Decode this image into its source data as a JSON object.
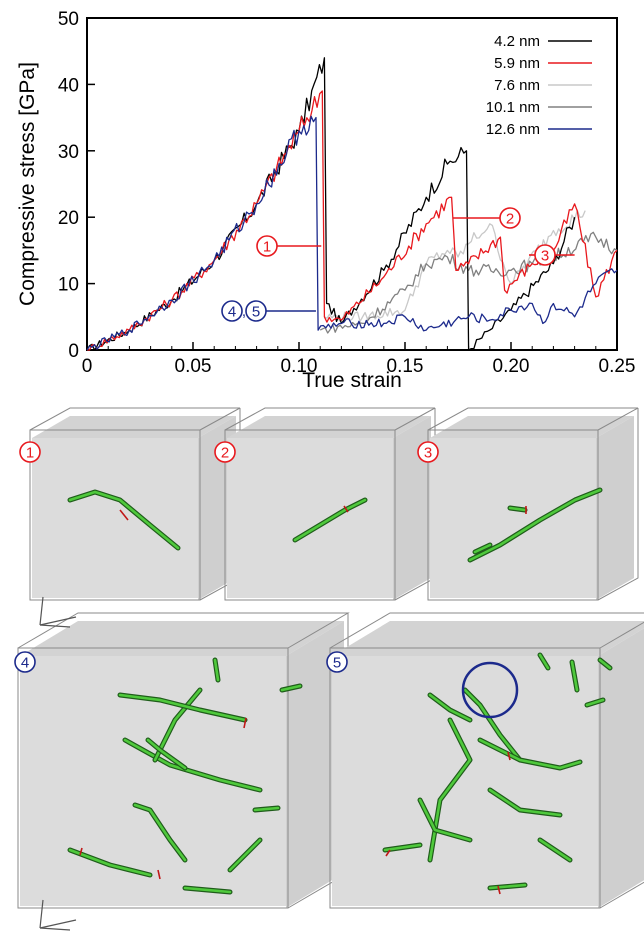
{
  "chart_data": {
    "type": "line",
    "xlabel": "True strain",
    "ylabel": "Compressive stress [GPa]",
    "xlim": [
      0,
      0.25
    ],
    "ylim": [
      0,
      50
    ],
    "xticks": [
      "0",
      "0.05",
      "0.10",
      "0.15",
      "0.20",
      "0.25"
    ],
    "yticks": [
      "0",
      "10",
      "20",
      "30",
      "40",
      "50"
    ],
    "legend_position": "top-right",
    "series": [
      {
        "name": "4.2 nm",
        "color": "#000000",
        "x": [
          0,
          0.02,
          0.04,
          0.06,
          0.08,
          0.1,
          0.112,
          0.113,
          0.12,
          0.14,
          0.16,
          0.17,
          0.179,
          0.18,
          0.19,
          0.2,
          0.22,
          0.23
        ],
        "y": [
          0,
          3,
          7.5,
          13.5,
          22,
          33,
          44,
          7,
          4,
          12,
          23,
          28,
          30,
          0,
          3,
          6,
          13,
          20
        ]
      },
      {
        "name": "5.9 nm",
        "color": "#e8191e",
        "x": [
          0,
          0.02,
          0.04,
          0.06,
          0.08,
          0.1,
          0.111,
          0.112,
          0.12,
          0.14,
          0.16,
          0.172,
          0.174,
          0.18,
          0.195,
          0.197,
          0.21,
          0.22,
          0.23,
          0.24,
          0.25
        ],
        "y": [
          0,
          3,
          7.5,
          13.5,
          22,
          33,
          39,
          5,
          4.5,
          11,
          19,
          23,
          12,
          13,
          17,
          9,
          13,
          15,
          22,
          8,
          15
        ]
      },
      {
        "name": "7.6 nm",
        "color": "#c8c8c8",
        "x": [
          0.112,
          0.13,
          0.15,
          0.16,
          0.17,
          0.175,
          0.18,
          0.19,
          0.2,
          0.22,
          0.235
        ],
        "y": [
          5,
          5,
          6,
          13,
          15,
          14,
          16,
          19,
          10,
          18,
          21
        ]
      },
      {
        "name": "10.1 nm",
        "color": "#808080",
        "x": [
          0.11,
          0.13,
          0.15,
          0.16,
          0.17,
          0.18,
          0.2,
          0.21,
          0.22,
          0.24,
          0.25
        ],
        "y": [
          3,
          4,
          9,
          13,
          14,
          12,
          12,
          13,
          14,
          17,
          15
        ]
      },
      {
        "name": "12.6 nm",
        "color": "#1c2a8c",
        "x": [
          0,
          0.02,
          0.04,
          0.06,
          0.08,
          0.1,
          0.108,
          0.109,
          0.12,
          0.14,
          0.15,
          0.16,
          0.18,
          0.19,
          0.2,
          0.21,
          0.215,
          0.22,
          0.23,
          0.24,
          0.25
        ],
        "y": [
          0,
          3,
          7.5,
          13.5,
          22,
          33,
          35,
          3,
          4,
          4,
          5,
          3,
          5,
          4.5,
          6,
          7,
          4,
          7,
          5,
          10,
          12
        ]
      }
    ],
    "annotations": [
      {
        "label": "1",
        "color": "#e8191e"
      },
      {
        "label": "2",
        "color": "#e8191e"
      },
      {
        "label": "3",
        "color": "#e8191e"
      },
      {
        "label": "4",
        "color": "#1c2a8c"
      },
      {
        "label": "5",
        "color": "#1c2a8c"
      }
    ]
  },
  "snapshots": [
    {
      "label": "1",
      "color": "#e8191e"
    },
    {
      "label": "2",
      "color": "#e8191e"
    },
    {
      "label": "3",
      "color": "#e8191e"
    },
    {
      "label": "4",
      "color": "#1c2a8c"
    },
    {
      "label": "5",
      "color": "#1c2a8c"
    }
  ],
  "marker_separator": ","
}
